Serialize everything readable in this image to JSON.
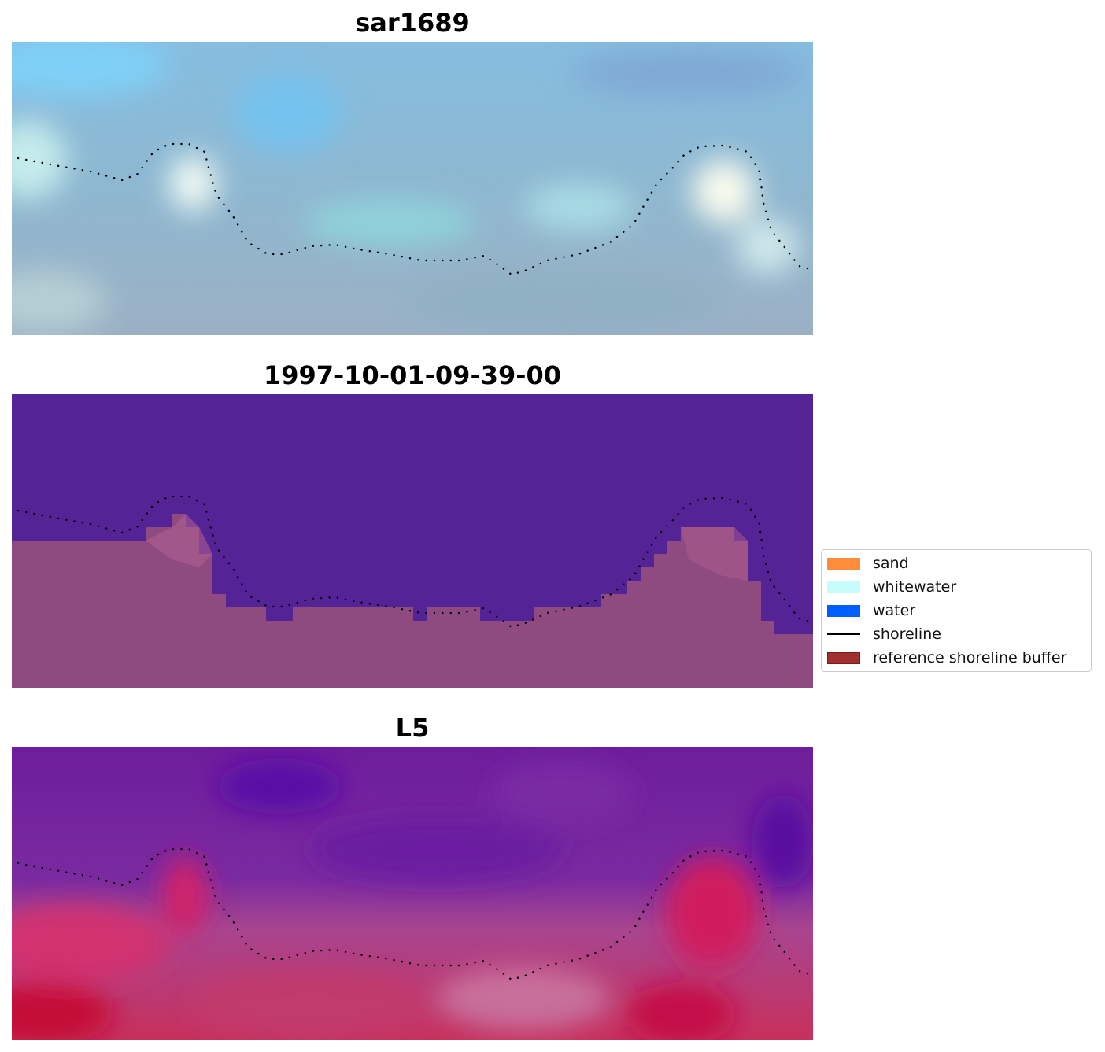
{
  "panels": [
    {
      "id": "rgb",
      "title": "sar1689"
    },
    {
      "id": "classified",
      "title": "1997-10-01-09-39-00"
    },
    {
      "id": "index",
      "title": "L5"
    }
  ],
  "legend": {
    "placement": "right",
    "items": [
      {
        "label": "sand",
        "type": "patch",
        "color": "#ff8c3a"
      },
      {
        "label": "whitewater",
        "type": "patch",
        "color": "#c8fcfb"
      },
      {
        "label": "water",
        "type": "patch",
        "color": "#005eff"
      },
      {
        "label": "shoreline",
        "type": "line",
        "color": "#000000"
      },
      {
        "label": "reference shoreline buffer",
        "type": "patch",
        "color": "#a03030",
        "border": "#7a1a1a"
      }
    ]
  },
  "colors": {
    "classified_water": "#542396",
    "classified_land": "#8f4a7f",
    "classified_land_light": "#b36294",
    "shoreline_dots": "#000000"
  }
}
